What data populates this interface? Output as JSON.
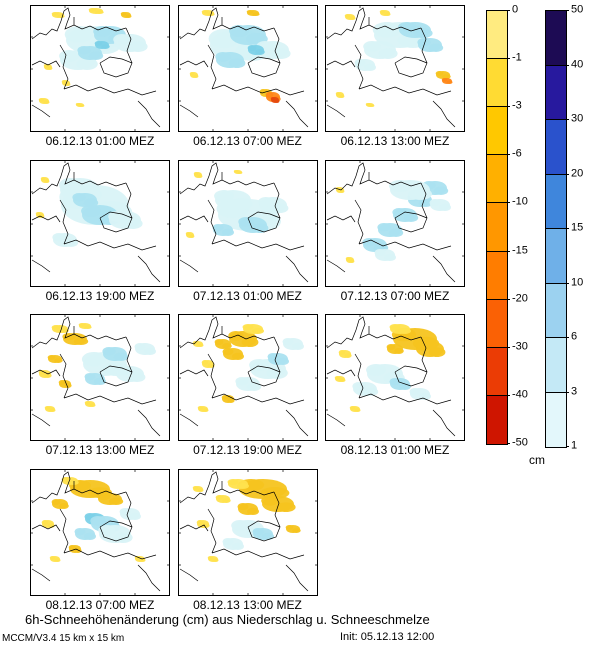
{
  "caption": "6h-Schneehöhenänderung (cm) aus Niederschlag u. Schneeschmelze",
  "footer": {
    "model": "MCCM/V3.4 15 km x 15 km",
    "init": "Init: 05.12.13 12:00"
  },
  "colorbars": {
    "unit": "cm",
    "negative": {
      "labels": [
        "0",
        "-1",
        "-3",
        "-6",
        "-10",
        "-15",
        "-20",
        "-30",
        "-40",
        "-50"
      ],
      "colors": [
        "#ffeb80",
        "#ffdb33",
        "#ffc800",
        "#ffb000",
        "#ff9700",
        "#ff7d00",
        "#fa6105",
        "#eb3c05",
        "#cf1500"
      ]
    },
    "positive": {
      "labels": [
        "50",
        "40",
        "30",
        "20",
        "15",
        "10",
        "6",
        "3",
        "1"
      ],
      "colors": [
        "#1d0b54",
        "#27199e",
        "#2a52cc",
        "#3f86dc",
        "#6fb0e8",
        "#9cd2f0",
        "#c4e9f6",
        "#e3f7fb"
      ]
    }
  },
  "palette": {
    "b1": "#d9f3f7",
    "b2": "#abe2f0",
    "b3": "#7cd1e8",
    "y1": "#ffe14d",
    "y2": "#f6c41f",
    "o1": "#ff8718",
    "r1": "#e64a0e"
  },
  "panels": [
    {
      "label": "06.12.13 01:00 MEZ",
      "cells": [
        [
          "b1",
          62,
          35,
          26,
          14
        ],
        [
          "b2",
          80,
          30,
          16,
          9
        ],
        [
          "b1",
          48,
          55,
          18,
          10
        ],
        [
          "b2",
          60,
          48,
          12,
          7
        ],
        [
          "b1",
          100,
          38,
          16,
          9
        ],
        [
          "b3",
          72,
          40,
          7,
          4
        ],
        [
          "y1",
          28,
          10,
          6,
          3
        ],
        [
          "y1",
          66,
          6,
          7,
          3
        ],
        [
          "y2",
          96,
          10,
          5,
          3
        ],
        [
          "y1",
          18,
          62,
          4,
          3
        ],
        [
          "y1",
          36,
          78,
          4,
          3
        ],
        [
          "y1",
          14,
          96,
          5,
          3
        ],
        [
          "y1",
          50,
          100,
          4,
          2
        ]
      ]
    },
    {
      "label": "06.12.13 07:00 MEZ",
      "cells": [
        [
          "b1",
          60,
          40,
          28,
          16
        ],
        [
          "b2",
          70,
          30,
          18,
          10
        ],
        [
          "b2",
          52,
          55,
          14,
          8
        ],
        [
          "b1",
          95,
          45,
          16,
          9
        ],
        [
          "b3",
          78,
          45,
          8,
          5
        ],
        [
          "y1",
          30,
          8,
          6,
          3
        ],
        [
          "y2",
          75,
          8,
          6,
          3
        ],
        [
          "y1",
          16,
          70,
          4,
          3
        ],
        [
          "y2",
          88,
          88,
          6,
          4
        ],
        [
          "o1",
          95,
          92,
          7,
          5
        ],
        [
          "r1",
          97,
          95,
          4,
          3
        ]
      ]
    },
    {
      "label": "06.12.13 13:00 MEZ",
      "cells": [
        [
          "b1",
          75,
          30,
          26,
          13
        ],
        [
          "b2",
          90,
          25,
          16,
          8
        ],
        [
          "b1",
          55,
          45,
          16,
          9
        ],
        [
          "b2",
          105,
          40,
          12,
          7
        ],
        [
          "b1",
          40,
          60,
          10,
          6
        ],
        [
          "y1",
          25,
          12,
          5,
          3
        ],
        [
          "y1",
          60,
          8,
          5,
          3
        ],
        [
          "y2",
          118,
          70,
          7,
          4
        ],
        [
          "o1",
          122,
          76,
          5,
          3
        ],
        [
          "y1",
          15,
          90,
          4,
          3
        ],
        [
          "y1",
          45,
          100,
          4,
          2
        ]
      ]
    },
    {
      "label": "06.12.13 19:00 MEZ",
      "cells": [
        [
          "b1",
          65,
          45,
          34,
          20
        ],
        [
          "b1",
          50,
          30,
          20,
          12
        ],
        [
          "b2",
          70,
          55,
          18,
          10
        ],
        [
          "b2",
          55,
          40,
          12,
          7
        ],
        [
          "b1",
          95,
          60,
          16,
          9
        ],
        [
          "b1",
          35,
          80,
          12,
          7
        ],
        [
          "y1",
          15,
          20,
          4,
          3
        ],
        [
          "y1",
          10,
          55,
          4,
          3
        ]
      ]
    },
    {
      "label": "07.12.13 01:00 MEZ",
      "cells": [
        [
          "b1",
          70,
          55,
          30,
          16
        ],
        [
          "b1",
          55,
          40,
          18,
          10
        ],
        [
          "b2",
          75,
          65,
          14,
          8
        ],
        [
          "b1",
          95,
          45,
          14,
          8
        ],
        [
          "b2",
          45,
          70,
          10,
          6
        ],
        [
          "y1",
          20,
          15,
          4,
          3
        ],
        [
          "y1",
          12,
          75,
          4,
          3
        ],
        [
          "y1",
          60,
          12,
          4,
          2
        ]
      ]
    },
    {
      "label": "07.12.13 07:00 MEZ",
      "cells": [
        [
          "b2",
          50,
          85,
          12,
          7
        ],
        [
          "b2",
          65,
          70,
          12,
          7
        ],
        [
          "b2",
          80,
          55,
          12,
          7
        ],
        [
          "b2",
          95,
          40,
          12,
          7
        ],
        [
          "b2",
          110,
          28,
          12,
          7
        ],
        [
          "b1",
          85,
          30,
          20,
          10
        ],
        [
          "b1",
          60,
          95,
          10,
          6
        ],
        [
          "b1",
          115,
          45,
          10,
          6
        ],
        [
          "y1",
          15,
          30,
          4,
          3
        ],
        [
          "y1",
          25,
          100,
          4,
          3
        ]
      ]
    },
    {
      "label": "07.12.13 13:00 MEZ",
      "cells": [
        [
          "y2",
          45,
          25,
          12,
          6
        ],
        [
          "y1",
          30,
          15,
          8,
          4
        ],
        [
          "y2",
          25,
          45,
          7,
          4
        ],
        [
          "y1",
          15,
          60,
          6,
          4
        ],
        [
          "y2",
          35,
          70,
          6,
          4
        ],
        [
          "y1",
          55,
          12,
          6,
          3
        ],
        [
          "b1",
          75,
          50,
          22,
          12
        ],
        [
          "b2",
          85,
          40,
          12,
          7
        ],
        [
          "b1",
          100,
          60,
          14,
          8
        ],
        [
          "b2",
          65,
          65,
          10,
          6
        ],
        [
          "b1",
          115,
          35,
          10,
          6
        ],
        [
          "y1",
          20,
          95,
          5,
          3
        ],
        [
          "y1",
          60,
          90,
          5,
          3
        ]
      ]
    },
    {
      "label": "07.12.13 19:00 MEZ",
      "cells": [
        [
          "y2",
          65,
          25,
          14,
          8
        ],
        [
          "y2",
          55,
          40,
          10,
          6
        ],
        [
          "y1",
          75,
          15,
          10,
          5
        ],
        [
          "y2",
          45,
          30,
          8,
          5
        ],
        [
          "y1",
          30,
          50,
          6,
          4
        ],
        [
          "y1",
          20,
          30,
          5,
          3
        ],
        [
          "b1",
          90,
          55,
          18,
          10
        ],
        [
          "b2",
          100,
          45,
          10,
          6
        ],
        [
          "b1",
          70,
          70,
          12,
          7
        ],
        [
          "b1",
          115,
          30,
          10,
          6
        ],
        [
          "y1",
          25,
          95,
          5,
          3
        ],
        [
          "y2",
          50,
          85,
          6,
          4
        ]
      ]
    },
    {
      "label": "08.12.13 01:00 MEZ",
      "cells": [
        [
          "y2",
          90,
          25,
          22,
          11
        ],
        [
          "y2",
          105,
          35,
          14,
          8
        ],
        [
          "y1",
          75,
          15,
          10,
          5
        ],
        [
          "y2",
          70,
          35,
          8,
          5
        ],
        [
          "b1",
          60,
          60,
          18,
          10
        ],
        [
          "b2",
          75,
          70,
          10,
          6
        ],
        [
          "b1",
          40,
          75,
          12,
          7
        ],
        [
          "b1",
          95,
          80,
          10,
          6
        ],
        [
          "y1",
          20,
          40,
          6,
          4
        ],
        [
          "y1",
          15,
          65,
          5,
          3
        ],
        [
          "y1",
          30,
          95,
          5,
          3
        ]
      ]
    },
    {
      "label": "08.12.13 07:00 MEZ",
      "cells": [
        [
          "y2",
          60,
          20,
          20,
          9
        ],
        [
          "y2",
          80,
          30,
          12,
          6
        ],
        [
          "y1",
          40,
          12,
          8,
          4
        ],
        [
          "y2",
          30,
          35,
          8,
          5
        ],
        [
          "y1",
          18,
          55,
          6,
          4
        ],
        [
          "b3",
          65,
          50,
          10,
          6
        ],
        [
          "b2",
          75,
          55,
          14,
          8
        ],
        [
          "b1",
          85,
          65,
          16,
          9
        ],
        [
          "b2",
          55,
          65,
          10,
          6
        ],
        [
          "b1",
          100,
          45,
          10,
          6
        ],
        [
          "y1",
          25,
          90,
          5,
          3
        ],
        [
          "y2",
          45,
          80,
          6,
          4
        ],
        [
          "y1",
          110,
          90,
          5,
          3
        ]
      ]
    },
    {
      "label": "08.12.13 13:00 MEZ",
      "cells": [
        [
          "y2",
          85,
          20,
          24,
          10
        ],
        [
          "y2",
          100,
          35,
          16,
          8
        ],
        [
          "y1",
          60,
          15,
          10,
          5
        ],
        [
          "y2",
          70,
          40,
          10,
          6
        ],
        [
          "y1",
          45,
          30,
          7,
          4
        ],
        [
          "b1",
          70,
          60,
          16,
          9
        ],
        [
          "b2",
          85,
          65,
          10,
          6
        ],
        [
          "b1",
          55,
          75,
          10,
          6
        ],
        [
          "y1",
          25,
          55,
          6,
          4
        ],
        [
          "y1",
          35,
          90,
          5,
          3
        ],
        [
          "y2",
          115,
          60,
          7,
          4
        ],
        [
          "y1",
          20,
          20,
          5,
          3
        ]
      ]
    }
  ]
}
